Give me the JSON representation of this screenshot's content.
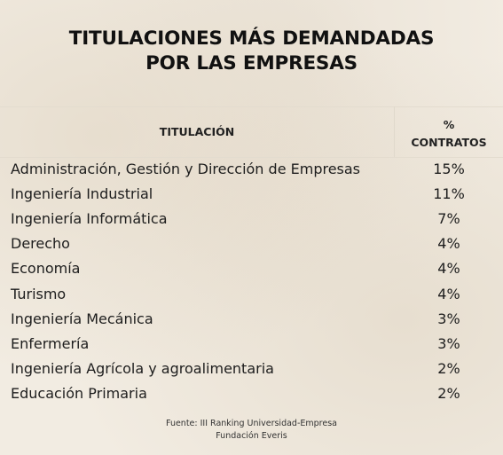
{
  "chart_data": {
    "type": "table",
    "title_line1": "TITULACIONES MÁS DEMANDADAS",
    "title_line2": "POR LAS EMPRESAS",
    "columns": [
      "TITULACIÓN",
      "%",
      "CONTRATOS"
    ],
    "rows": [
      {
        "name": "Administración, Gestión y Dirección de Empresas",
        "value": "15%"
      },
      {
        "name": "Ingeniería Industrial",
        "value": "11%"
      },
      {
        "name": "Ingeniería Informática",
        "value": "7%"
      },
      {
        "name": "Derecho",
        "value": "4%"
      },
      {
        "name": "Economía",
        "value": "4%"
      },
      {
        "name": "Turismo",
        "value": "4%"
      },
      {
        "name": "Ingeniería Mecánica",
        "value": "3%"
      },
      {
        "name": "Enfermería",
        "value": "3%"
      },
      {
        "name": "Ingeniería Agrícola y agroalimentaria",
        "value": "2%"
      },
      {
        "name": "Educación Primaria",
        "value": "2%"
      }
    ],
    "source_line1": "Fuente: III Ranking Universidad-Empresa",
    "source_line2": "Fundación Everis"
  }
}
